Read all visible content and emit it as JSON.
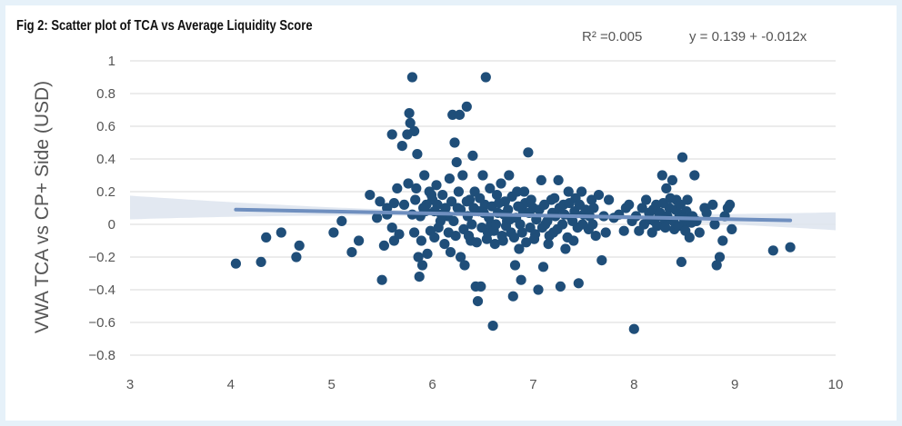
{
  "colors": {
    "background": "#e6f1f9",
    "panel": "#ffffff",
    "points": "#1f4e79",
    "trendline": "#6f8fbf",
    "confidence_band": "#dde4ee",
    "gridline": "#d9d9d9"
  },
  "chart_data": {
    "type": "scatter",
    "title": "Fig 2: Scatter plot of TCA vs Average Liquidity Score",
    "xlabel": "",
    "ylabel": "VWA TCA vs CP+ Side (USD)",
    "xlim": [
      3,
      10
    ],
    "ylim": [
      -0.8,
      1
    ],
    "x_ticks": [
      "3",
      "4",
      "5",
      "6",
      "7",
      "8",
      "9",
      "10"
    ],
    "y_ticks": [
      "1",
      "0.8",
      "0.6",
      "0.4",
      "0.2",
      "0",
      "−0.2",
      "−0.4",
      "−0.6",
      "−0.8"
    ],
    "grid": "horizontal",
    "r_squared": "R² =0.005",
    "equation": "y = 0.139 + -0.012x",
    "trendline": {
      "intercept": 0.139,
      "slope": -0.012,
      "x_range": [
        4.05,
        9.55
      ]
    },
    "points": [
      [
        4.05,
        -0.24
      ],
      [
        4.3,
        -0.23
      ],
      [
        4.35,
        -0.08
      ],
      [
        4.5,
        -0.05
      ],
      [
        4.65,
        -0.2
      ],
      [
        4.68,
        -0.13
      ],
      [
        5.02,
        -0.05
      ],
      [
        5.1,
        0.02
      ],
      [
        5.2,
        -0.17
      ],
      [
        5.27,
        -0.1
      ],
      [
        5.38,
        0.18
      ],
      [
        5.45,
        0.04
      ],
      [
        5.48,
        0.14
      ],
      [
        5.5,
        -0.34
      ],
      [
        5.52,
        -0.13
      ],
      [
        5.55,
        0.1
      ],
      [
        5.6,
        0.55
      ],
      [
        5.62,
        -0.1
      ],
      [
        5.65,
        0.22
      ],
      [
        5.67,
        -0.06
      ],
      [
        5.7,
        0.48
      ],
      [
        5.72,
        0.12
      ],
      [
        5.75,
        0.55
      ],
      [
        5.76,
        0.25
      ],
      [
        5.77,
        0.68
      ],
      [
        5.78,
        0.62
      ],
      [
        5.8,
        0.9
      ],
      [
        5.82,
        0.57
      ],
      [
        5.83,
        0.15
      ],
      [
        5.85,
        0.43
      ],
      [
        5.86,
        -0.2
      ],
      [
        5.87,
        -0.32
      ],
      [
        5.88,
        0.05
      ],
      [
        5.9,
        -0.25
      ],
      [
        5.92,
        0.3
      ],
      [
        5.93,
        0.08
      ],
      [
        5.95,
        -0.18
      ],
      [
        5.97,
        0.2
      ],
      [
        5.6,
        -0.02
      ],
      [
        5.55,
        0.06
      ],
      [
        5.62,
        0.13
      ],
      [
        5.8,
        0.06
      ],
      [
        5.82,
        -0.05
      ],
      [
        5.84,
        0.22
      ],
      [
        5.98,
        -0.04
      ],
      [
        6.0,
        0.15
      ],
      [
        6.02,
        -0.08
      ],
      [
        6.05,
        0.12
      ],
      [
        6.08,
        0.02
      ],
      [
        6.1,
        0.18
      ],
      [
        6.12,
        -0.12
      ],
      [
        6.15,
        0.05
      ],
      [
        6.17,
        0.28
      ],
      [
        6.18,
        -0.17
      ],
      [
        6.2,
        0.67
      ],
      [
        6.22,
        0.5
      ],
      [
        6.24,
        0.38
      ],
      [
        6.25,
        0.1
      ],
      [
        6.27,
        0.67
      ],
      [
        6.28,
        -0.2
      ],
      [
        6.3,
        0.3
      ],
      [
        6.32,
        -0.25
      ],
      [
        6.34,
        0.72
      ],
      [
        6.35,
        0.05
      ],
      [
        6.37,
        0.15
      ],
      [
        6.38,
        -0.1
      ],
      [
        6.4,
        0.42
      ],
      [
        6.42,
        0.2
      ],
      [
        6.43,
        -0.38
      ],
      [
        6.45,
        -0.47
      ],
      [
        6.46,
        0.08
      ],
      [
        6.48,
        -0.38
      ],
      [
        6.5,
        0.3
      ],
      [
        6.52,
        0.12
      ],
      [
        6.53,
        0.9
      ],
      [
        6.55,
        -0.05
      ],
      [
        6.57,
        0.22
      ],
      [
        6.58,
        0.0
      ],
      [
        6.6,
        -0.62
      ],
      [
        6.62,
        -0.12
      ],
      [
        6.64,
        0.18
      ],
      [
        6.65,
        0.07
      ],
      [
        6.68,
        0.25
      ],
      [
        6.7,
        -0.1
      ],
      [
        6.72,
        0.14
      ],
      [
        6.74,
        0.02
      ],
      [
        6.76,
        0.3
      ],
      [
        6.78,
        -0.05
      ],
      [
        6.8,
        -0.44
      ],
      [
        6.82,
        -0.25
      ],
      [
        6.84,
        0.2
      ],
      [
        6.86,
        -0.15
      ],
      [
        6.88,
        -0.34
      ],
      [
        6.9,
        0.08
      ],
      [
        6.92,
        0.13
      ],
      [
        6.95,
        0.44
      ],
      [
        6.97,
        -0.02
      ],
      [
        7.0,
        0.1
      ],
      [
        7.02,
        -0.06
      ],
      [
        7.05,
        -0.4
      ],
      [
        7.08,
        0.27
      ],
      [
        7.1,
        -0.26
      ],
      [
        7.12,
        0.0
      ],
      [
        7.15,
        -0.12
      ],
      [
        7.18,
        0.15
      ],
      [
        7.2,
        -0.05
      ],
      [
        7.22,
        0.05
      ],
      [
        7.25,
        0.27
      ],
      [
        7.27,
        -0.38
      ],
      [
        7.3,
        0.12
      ],
      [
        7.32,
        -0.15
      ],
      [
        7.35,
        0.2
      ],
      [
        7.38,
        0.04
      ],
      [
        7.4,
        -0.1
      ],
      [
        7.42,
        0.16
      ],
      [
        7.45,
        -0.36
      ],
      [
        7.48,
        0.2
      ],
      [
        7.5,
        0.06
      ],
      [
        7.55,
        -0.03
      ],
      [
        7.58,
        0.15
      ],
      [
        7.6,
        0.1
      ],
      [
        7.62,
        -0.07
      ],
      [
        7.65,
        0.18
      ],
      [
        7.68,
        -0.22
      ],
      [
        7.7,
        0.05
      ],
      [
        7.72,
        -0.05
      ],
      [
        7.75,
        0.15
      ],
      [
        7.8,
        0.04
      ],
      [
        7.85,
        0.06
      ],
      [
        7.9,
        -0.04
      ],
      [
        7.92,
        0.1
      ],
      [
        7.95,
        0.12
      ],
      [
        7.98,
        0.02
      ],
      [
        8.0,
        -0.64
      ],
      [
        8.02,
        0.05
      ],
      [
        8.05,
        -0.04
      ],
      [
        8.08,
        0.1
      ],
      [
        8.1,
        0.0
      ],
      [
        8.12,
        0.15
      ],
      [
        8.15,
        0.07
      ],
      [
        8.18,
        -0.05
      ],
      [
        8.2,
        0.02
      ],
      [
        8.22,
        0.12
      ],
      [
        8.25,
        0.05
      ],
      [
        8.28,
        0.3
      ],
      [
        8.3,
        0.0
      ],
      [
        8.32,
        0.22
      ],
      [
        8.35,
        0.1
      ],
      [
        8.38,
        0.27
      ],
      [
        8.4,
        -0.03
      ],
      [
        8.42,
        0.15
      ],
      [
        8.45,
        0.06
      ],
      [
        8.47,
        -0.23
      ],
      [
        8.48,
        0.41
      ],
      [
        8.5,
        0.0
      ],
      [
        8.52,
        0.08
      ],
      [
        8.55,
        -0.08
      ],
      [
        8.58,
        0.05
      ],
      [
        8.6,
        0.3
      ],
      [
        8.62,
        0.02
      ],
      [
        8.65,
        -0.05
      ],
      [
        8.7,
        0.1
      ],
      [
        8.72,
        0.07
      ],
      [
        8.78,
        0.12
      ],
      [
        8.8,
        0.0
      ],
      [
        8.82,
        -0.25
      ],
      [
        8.85,
        -0.2
      ],
      [
        8.88,
        -0.1
      ],
      [
        8.9,
        0.05
      ],
      [
        8.93,
        0.1
      ],
      [
        8.95,
        0.12
      ],
      [
        8.97,
        -0.03
      ],
      [
        9.38,
        -0.16
      ],
      [
        9.55,
        -0.14
      ],
      [
        6.28,
        0.09
      ],
      [
        6.31,
        -0.03
      ],
      [
        6.34,
        0.14
      ],
      [
        6.36,
        -0.07
      ],
      [
        6.39,
        0.0
      ],
      [
        6.41,
        0.1
      ],
      [
        6.44,
        -0.11
      ],
      [
        6.47,
        0.16
      ],
      [
        6.49,
        -0.02
      ],
      [
        6.51,
        0.07
      ],
      [
        6.54,
        -0.09
      ],
      [
        6.56,
        0.04
      ],
      [
        6.59,
        0.11
      ],
      [
        6.61,
        -0.04
      ],
      [
        6.63,
        0.0
      ],
      [
        6.66,
        0.13
      ],
      [
        6.69,
        -0.07
      ],
      [
        6.71,
        0.06
      ],
      [
        6.73,
        -0.01
      ],
      [
        6.75,
        0.09
      ],
      [
        6.77,
        0.03
      ],
      [
        6.79,
        0.17
      ],
      [
        6.81,
        -0.08
      ],
      [
        6.83,
        0.04
      ],
      [
        6.85,
        0.11
      ],
      [
        6.87,
        0.0
      ],
      [
        6.89,
        -0.05
      ],
      [
        6.91,
        0.2
      ],
      [
        6.93,
        -0.11
      ],
      [
        6.96,
        0.07
      ],
      [
        6.98,
        0.15
      ],
      [
        7.01,
        -0.09
      ],
      [
        7.03,
        0.03
      ],
      [
        7.06,
        0.09
      ],
      [
        7.09,
        -0.02
      ],
      [
        7.11,
        0.12
      ],
      [
        7.14,
        0.02
      ],
      [
        7.16,
        -0.07
      ],
      [
        7.19,
        0.07
      ],
      [
        7.21,
        0.16
      ],
      [
        7.24,
        -0.03
      ],
      [
        7.26,
        0.1
      ],
      [
        7.29,
        0.0
      ],
      [
        7.31,
        0.06
      ],
      [
        7.34,
        -0.08
      ],
      [
        7.36,
        0.13
      ],
      [
        7.39,
        0.02
      ],
      [
        7.41,
        0.08
      ],
      [
        7.44,
        -0.02
      ],
      [
        7.46,
        0.12
      ],
      [
        7.49,
        0.0
      ],
      [
        7.52,
        0.09
      ],
      [
        7.56,
        0.05
      ],
      [
        7.59,
        0.0
      ],
      [
        8.16,
        0.03
      ],
      [
        8.19,
        0.09
      ],
      [
        8.23,
        -0.01
      ],
      [
        8.26,
        0.07
      ],
      [
        8.29,
        0.13
      ],
      [
        8.31,
        -0.02
      ],
      [
        8.33,
        0.05
      ],
      [
        8.36,
        0.16
      ],
      [
        8.39,
        0.02
      ],
      [
        8.41,
        0.09
      ],
      [
        8.44,
        -0.01
      ],
      [
        8.46,
        0.12
      ],
      [
        8.49,
        0.04
      ],
      [
        8.51,
        -0.04
      ],
      [
        8.53,
        0.15
      ],
      [
        8.57,
        0.01
      ],
      [
        6.02,
        0.08
      ],
      [
        6.06,
        -0.02
      ],
      [
        6.09,
        0.06
      ],
      [
        6.13,
        0.1
      ],
      [
        6.16,
        -0.05
      ],
      [
        6.19,
        0.14
      ],
      [
        6.21,
        0.02
      ],
      [
        6.23,
        -0.07
      ],
      [
        6.26,
        0.2
      ],
      [
        5.99,
        0.18
      ],
      [
        6.04,
        0.24
      ],
      [
        5.94,
        0.12
      ],
      [
        5.91,
        0.1
      ],
      [
        5.89,
        -0.1
      ]
    ]
  }
}
